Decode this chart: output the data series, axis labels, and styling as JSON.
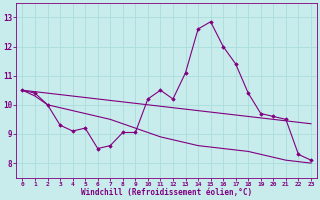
{
  "xlabel": "Windchill (Refroidissement éolien,°C)",
  "background_color": "#c8ecec",
  "line_color": "#800080",
  "grid_color": "#aadddd",
  "xlim": [
    -0.5,
    23.5
  ],
  "ylim": [
    7.5,
    13.5
  ],
  "yticks": [
    8,
    9,
    10,
    11,
    12,
    13
  ],
  "xticks": [
    0,
    1,
    2,
    3,
    4,
    5,
    6,
    7,
    8,
    9,
    10,
    11,
    12,
    13,
    14,
    15,
    16,
    17,
    18,
    19,
    20,
    21,
    22,
    23
  ],
  "line1_x": [
    0,
    1,
    2,
    3,
    4,
    5,
    6,
    7,
    8,
    9,
    10,
    11,
    12,
    13,
    14,
    15,
    16,
    17,
    18,
    19,
    20,
    21,
    22,
    23
  ],
  "line1_y": [
    10.5,
    10.4,
    10.0,
    9.3,
    9.1,
    9.2,
    8.5,
    8.6,
    9.05,
    9.05,
    10.2,
    10.5,
    10.2,
    11.1,
    12.6,
    12.85,
    12.0,
    11.4,
    10.4,
    9.7,
    9.6,
    9.5,
    8.3,
    8.1
  ],
  "line2_x": [
    0,
    1,
    2,
    3,
    4,
    5,
    6,
    7,
    8,
    9,
    10,
    11,
    12,
    13,
    14,
    15,
    16,
    17,
    18,
    19,
    20,
    21,
    22,
    23
  ],
  "line2_y": [
    10.5,
    10.45,
    10.4,
    10.35,
    10.3,
    10.25,
    10.2,
    10.15,
    10.1,
    10.05,
    10.0,
    9.95,
    9.9,
    9.85,
    9.8,
    9.75,
    9.7,
    9.65,
    9.6,
    9.55,
    9.5,
    9.45,
    9.4,
    9.35
  ],
  "line3_x": [
    0,
    1,
    2,
    3,
    4,
    5,
    6,
    7,
    8,
    9,
    10,
    11,
    12,
    13,
    14,
    15,
    16,
    17,
    18,
    19,
    20,
    21,
    22,
    23
  ],
  "line3_y": [
    10.5,
    10.3,
    10.0,
    9.9,
    9.8,
    9.7,
    9.6,
    9.5,
    9.35,
    9.2,
    9.05,
    8.9,
    8.8,
    8.7,
    8.6,
    8.55,
    8.5,
    8.45,
    8.4,
    8.3,
    8.2,
    8.1,
    8.05,
    8.0
  ]
}
